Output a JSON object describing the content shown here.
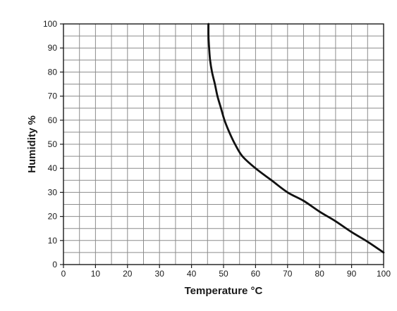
{
  "chart_data": {
    "type": "line",
    "title": "",
    "xlabel": "Temperature °C",
    "ylabel": "Humidity %",
    "xlim": [
      0,
      100
    ],
    "ylim": [
      0,
      100
    ],
    "x_ticks": [
      0,
      10,
      20,
      30,
      40,
      50,
      60,
      70,
      80,
      90,
      100
    ],
    "y_ticks": [
      0,
      10,
      20,
      30,
      40,
      50,
      60,
      70,
      80,
      90,
      100
    ],
    "grid": true,
    "grid_minor_step": 5,
    "legend": "none",
    "series": [
      {
        "color": "#111111",
        "points": [
          [
            45.3,
            100
          ],
          [
            45.3,
            95
          ],
          [
            45.5,
            90
          ],
          [
            45.8,
            85
          ],
          [
            46.4,
            80
          ],
          [
            47.3,
            75
          ],
          [
            48.1,
            70
          ],
          [
            49.2,
            65
          ],
          [
            50.3,
            60
          ],
          [
            51.8,
            55
          ],
          [
            53.6,
            50
          ],
          [
            55.9,
            45
          ],
          [
            60,
            40
          ],
          [
            65,
            35
          ],
          [
            70,
            30
          ],
          [
            75,
            26.5
          ],
          [
            80,
            22
          ],
          [
            85,
            18
          ],
          [
            90,
            13.5
          ],
          [
            95,
            9.5
          ],
          [
            100,
            5
          ]
        ]
      }
    ]
  }
}
